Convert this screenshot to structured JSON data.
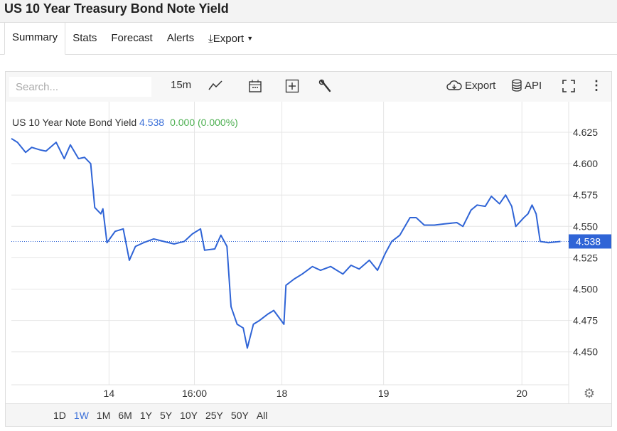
{
  "title": "US 10 Year Treasury Bond Note Yield",
  "tabs": [
    {
      "label": "Summary",
      "active": true
    },
    {
      "label": "Stats"
    },
    {
      "label": "Forecast"
    },
    {
      "label": "Alerts"
    },
    {
      "label": "Export"
    }
  ],
  "toolbar": {
    "search_placeholder": "Search...",
    "interval": "15m",
    "export": "Export",
    "api": "API"
  },
  "legend": {
    "name": "US 10 Year Note Bond Yield",
    "value": "4.538",
    "change": "0.000 (0.000%)"
  },
  "ranges": [
    {
      "label": "1D"
    },
    {
      "label": "1W",
      "selected": true
    },
    {
      "label": "1M"
    },
    {
      "label": "6M"
    },
    {
      "label": "1Y"
    },
    {
      "label": "5Y"
    },
    {
      "label": "10Y"
    },
    {
      "label": "25Y"
    },
    {
      "label": "50Y"
    },
    {
      "label": "All"
    }
  ],
  "colors": {
    "line": "#2f64d6",
    "accent": "#3a6fd8",
    "positive": "#4caf50"
  },
  "chart_data": {
    "type": "line",
    "ylim": [
      4.43,
      4.645
    ],
    "yticks": [
      "4.625",
      "4.600",
      "4.575",
      "4.550",
      "4.525",
      "4.500",
      "4.475",
      "4.450"
    ],
    "xticks": [
      {
        "label": "14",
        "t": 48
      },
      {
        "label": "16:00",
        "t": 90
      },
      {
        "label": "18",
        "t": 133
      },
      {
        "label": "19",
        "t": 183
      },
      {
        "label": "20",
        "t": 251
      }
    ],
    "last_price": "4.538",
    "xrange": [
      0,
      274
    ],
    "points": [
      [
        0,
        4.62
      ],
      [
        3,
        4.617
      ],
      [
        7,
        4.609
      ],
      [
        10,
        4.613
      ],
      [
        14,
        4.611
      ],
      [
        17,
        4.61
      ],
      [
        22,
        4.617
      ],
      [
        26,
        4.604
      ],
      [
        29,
        4.615
      ],
      [
        33,
        4.604
      ],
      [
        36,
        4.605
      ],
      [
        39,
        4.6
      ],
      [
        41,
        4.565
      ],
      [
        44,
        4.56
      ],
      [
        45,
        4.564
      ],
      [
        47,
        4.537
      ],
      [
        51,
        4.546
      ],
      [
        55,
        4.548
      ],
      [
        58,
        4.523
      ],
      [
        61,
        4.534
      ],
      [
        65,
        4.537
      ],
      [
        70,
        4.54
      ],
      [
        75,
        4.538
      ],
      [
        80,
        4.536
      ],
      [
        85,
        4.538
      ],
      [
        89,
        4.544
      ],
      [
        93,
        4.548
      ],
      [
        95,
        4.531
      ],
      [
        100,
        4.532
      ],
      [
        103,
        4.543
      ],
      [
        106,
        4.534
      ],
      [
        108,
        4.486
      ],
      [
        111,
        4.472
      ],
      [
        114,
        4.469
      ],
      [
        116,
        4.453
      ],
      [
        119,
        4.472
      ],
      [
        122,
        4.475
      ],
      [
        126,
        4.48
      ],
      [
        129,
        4.483
      ],
      [
        134,
        4.472
      ],
      [
        135,
        4.503
      ],
      [
        139,
        4.508
      ],
      [
        143,
        4.512
      ],
      [
        148,
        4.518
      ],
      [
        152,
        4.515
      ],
      [
        157,
        4.518
      ],
      [
        163,
        4.512
      ],
      [
        167,
        4.519
      ],
      [
        171,
        4.516
      ],
      [
        176,
        4.523
      ],
      [
        180,
        4.515
      ],
      [
        184,
        4.529
      ],
      [
        187,
        4.538
      ],
      [
        191,
        4.543
      ],
      [
        196,
        4.557
      ],
      [
        199,
        4.557
      ],
      [
        203,
        4.551
      ],
      [
        208,
        4.551
      ],
      [
        213,
        4.552
      ],
      [
        219,
        4.553
      ],
      [
        222,
        4.55
      ],
      [
        226,
        4.563
      ],
      [
        229,
        4.567
      ],
      [
        233,
        4.566
      ],
      [
        236,
        4.574
      ],
      [
        240,
        4.568
      ],
      [
        243,
        4.575
      ],
      [
        246,
        4.566
      ],
      [
        248,
        4.55
      ],
      [
        252,
        4.557
      ],
      [
        254,
        4.56
      ],
      [
        256,
        4.567
      ],
      [
        258,
        4.56
      ],
      [
        260,
        4.538
      ],
      [
        264,
        4.537
      ],
      [
        270,
        4.538
      ]
    ]
  }
}
